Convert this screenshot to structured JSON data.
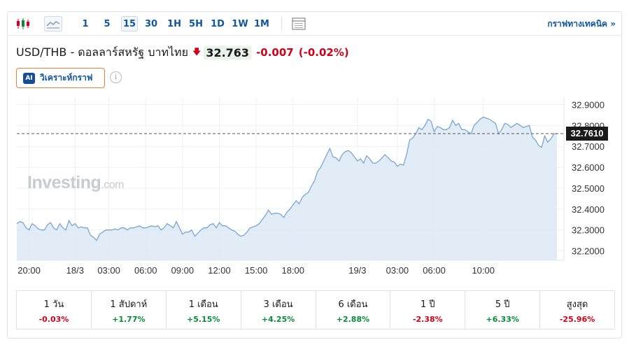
{
  "toolbar": {
    "timeframes": [
      "1",
      "5",
      "15",
      "30",
      "1H",
      "5H",
      "1D",
      "1W",
      "1M"
    ],
    "active_timeframe": "15",
    "technical_link": "กราฟทางเทคนิค »"
  },
  "header": {
    "pair": "USD/THB - ดอลลาร์สหรัฐ บาทไทย",
    "direction_icon": "down-arrow-icon",
    "price": "32.763",
    "change": "-0.007",
    "change_pct": "(-0.02%)"
  },
  "ai_button": {
    "badge": "AI",
    "label": "วิเคราะห์กราฟ"
  },
  "watermark": {
    "brand": "Investing",
    "domain": ".com"
  },
  "colors": {
    "down": "#d0021b",
    "up": "#0a8a3a",
    "line": "#7aa6d2",
    "fill": "#dde9f4",
    "link": "#1256a0"
  },
  "chart_data": {
    "type": "area",
    "title": "",
    "xlabel": "",
    "ylabel": "",
    "current_value": 32.761,
    "current_label": "32.7610",
    "ylim": [
      32.155,
      32.935
    ],
    "y_ticks": [
      "32.9000",
      "32.8000",
      "32.7000",
      "32.6000",
      "32.5000",
      "32.4000",
      "32.3000",
      "32.2000"
    ],
    "y_tick_values": [
      32.9,
      32.8,
      32.7,
      32.6,
      32.5,
      32.4,
      32.3,
      32.2
    ],
    "x_tick_labels": [
      "20:00",
      "18/3",
      "03:00",
      "06:00",
      "09:00",
      "12:00",
      "15:00",
      "18:00",
      "19/3",
      "03:00",
      "06:00",
      "10:00"
    ],
    "x_tick_index": [
      4,
      19,
      30,
      42,
      54,
      66,
      78,
      90,
      111,
      124,
      136,
      152
    ],
    "grid": true,
    "series": [
      {
        "values": [
          32.33,
          32.34,
          32.335,
          32.31,
          32.3,
          32.33,
          32.32,
          32.305,
          32.3,
          32.3,
          32.325,
          32.335,
          32.31,
          32.3,
          32.33,
          32.31,
          32.3,
          32.345,
          32.32,
          32.33,
          32.31,
          32.315,
          32.31,
          32.31,
          32.275,
          32.265,
          32.25,
          32.28,
          32.29,
          32.3,
          32.3,
          32.3,
          32.305,
          32.3,
          32.31,
          32.31,
          32.3,
          32.31,
          32.31,
          32.315,
          32.32,
          32.31,
          32.31,
          32.315,
          32.32,
          32.315,
          32.32,
          32.3,
          32.31,
          32.33,
          32.32,
          32.31,
          32.34,
          32.31,
          32.28,
          32.29,
          32.29,
          32.3,
          32.27,
          32.285,
          32.3,
          32.31,
          32.31,
          32.325,
          32.33,
          32.31,
          32.335,
          32.32,
          32.32,
          32.31,
          32.3,
          32.295,
          32.28,
          32.27,
          32.275,
          32.29,
          32.31,
          32.315,
          32.32,
          32.33,
          32.35,
          32.37,
          32.395,
          32.375,
          32.38,
          32.38,
          32.375,
          32.36,
          32.385,
          32.4,
          32.42,
          32.44,
          32.425,
          32.455,
          32.47,
          32.48,
          32.51,
          32.535,
          32.58,
          32.6,
          32.63,
          32.66,
          32.69,
          32.65,
          32.645,
          32.63,
          32.66,
          32.675,
          32.68,
          32.67,
          32.65,
          32.63,
          32.64,
          32.62,
          32.655,
          32.64,
          32.62,
          32.62,
          32.63,
          32.645,
          32.66,
          32.645,
          32.63,
          32.625,
          32.605,
          32.615,
          32.61,
          32.66,
          32.73,
          32.74,
          32.76,
          32.79,
          32.78,
          32.8,
          32.83,
          32.82,
          32.77,
          32.795,
          32.79,
          32.78,
          32.78,
          32.79,
          32.825,
          32.8,
          32.81,
          32.78,
          32.78,
          32.77,
          32.76,
          32.8,
          32.815,
          32.83,
          32.84,
          32.835,
          32.83,
          32.82,
          32.81,
          32.76,
          32.78,
          32.81,
          32.805,
          32.79,
          32.8,
          32.81,
          32.8,
          32.79,
          32.795,
          32.8,
          32.745,
          32.73,
          32.705,
          32.695,
          32.75,
          32.72,
          32.735,
          32.76,
          32.761
        ]
      }
    ]
  },
  "performance": [
    {
      "period": "1 วัน",
      "value": "-0.03%",
      "dir": "neg"
    },
    {
      "period": "1 สัปดาห์",
      "value": "+1.77%",
      "dir": "pos"
    },
    {
      "period": "1 เดือน",
      "value": "+5.15%",
      "dir": "pos"
    },
    {
      "period": "3 เดือน",
      "value": "+4.25%",
      "dir": "pos"
    },
    {
      "period": "6 เดือน",
      "value": "+2.88%",
      "dir": "pos"
    },
    {
      "period": "1 ปี",
      "value": "-2.38%",
      "dir": "neg"
    },
    {
      "period": "5 ปี",
      "value": "+6.33%",
      "dir": "pos"
    },
    {
      "period": "สูงสุด",
      "value": "-25.96%",
      "dir": "neg"
    }
  ]
}
